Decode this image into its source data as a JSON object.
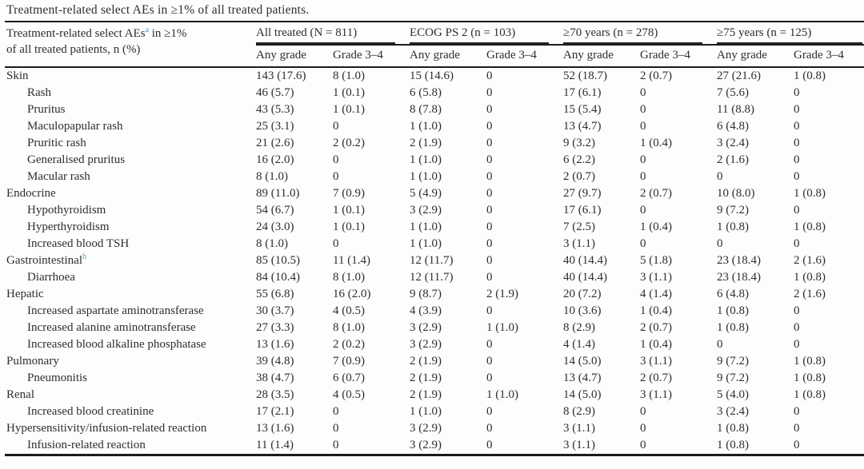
{
  "caption": "Treatment-related select AEs in ≥1% of all treated patients.",
  "colors": {
    "text": "#2e2e2e",
    "rule": "#1c1c1c",
    "footnote_marker": "#4a9ac8",
    "background": "#fdfdfd"
  },
  "table": {
    "row_header": {
      "line1_prefix": "Treatment-related select AEs",
      "sup": "a",
      "line1_suffix": " in ≥1%",
      "line2": "of all treated patients, n (%)"
    },
    "groups": [
      {
        "label": "All treated (N = 811)"
      },
      {
        "label": "ECOG PS 2 (n = 103)"
      },
      {
        "label": "≥70 years (n = 278)"
      },
      {
        "label": "≥75 years (n = 125)"
      }
    ],
    "subheaders": [
      "Any grade",
      "Grade 3–4",
      "Any grade",
      "Grade 3–4",
      "Any grade",
      "Grade 3–4",
      "Any grade",
      "Grade 3–4"
    ],
    "rows": [
      {
        "label": "Skin",
        "indent": false,
        "cells": [
          "143 (17.6)",
          "8 (1.0)",
          "15 (14.6)",
          "0",
          "52 (18.7)",
          "2 (0.7)",
          "27 (21.6)",
          "1 (0.8)"
        ]
      },
      {
        "label": "Rash",
        "indent": true,
        "cells": [
          "46 (5.7)",
          "1 (0.1)",
          "6 (5.8)",
          "0",
          "17 (6.1)",
          "0",
          "7 (5.6)",
          "0"
        ]
      },
      {
        "label": "Pruritus",
        "indent": true,
        "cells": [
          "43 (5.3)",
          "1 (0.1)",
          "8 (7.8)",
          "0",
          "15 (5.4)",
          "0",
          "11 (8.8)",
          "0"
        ]
      },
      {
        "label": "Maculopapular rash",
        "indent": true,
        "cells": [
          "25 (3.1)",
          "0",
          "1 (1.0)",
          "0",
          "13 (4.7)",
          "0",
          "6 (4.8)",
          "0"
        ]
      },
      {
        "label": "Pruritic rash",
        "indent": true,
        "cells": [
          "21 (2.6)",
          "2 (0.2)",
          "2 (1.9)",
          "0",
          "9 (3.2)",
          "1 (0.4)",
          "3 (2.4)",
          "0"
        ]
      },
      {
        "label": "Generalised pruritus",
        "indent": true,
        "cells": [
          "16 (2.0)",
          "0",
          "1 (1.0)",
          "0",
          "6 (2.2)",
          "0",
          "2 (1.6)",
          "0"
        ]
      },
      {
        "label": "Macular rash",
        "indent": true,
        "cells": [
          "8 (1.0)",
          "0",
          "1 (1.0)",
          "0",
          "2 (0.7)",
          "0",
          "0",
          "0"
        ]
      },
      {
        "label": "Endocrine",
        "indent": false,
        "cells": [
          "89 (11.0)",
          "7 (0.9)",
          "5 (4.9)",
          "0",
          "27 (9.7)",
          "2 (0.7)",
          "10 (8.0)",
          "1 (0.8)"
        ]
      },
      {
        "label": "Hypothyroidism",
        "indent": true,
        "cells": [
          "54 (6.7)",
          "1 (0.1)",
          "3 (2.9)",
          "0",
          "17 (6.1)",
          "0",
          "9 (7.2)",
          "0"
        ]
      },
      {
        "label": "Hyperthyroidism",
        "indent": true,
        "cells": [
          "24 (3.0)",
          "1 (0.1)",
          "1 (1.0)",
          "0",
          "7 (2.5)",
          "1 (0.4)",
          "1 (0.8)",
          "1 (0.8)"
        ]
      },
      {
        "label": "Increased blood TSH",
        "indent": true,
        "cells": [
          "8 (1.0)",
          "0",
          "1 (1.0)",
          "0",
          "3 (1.1)",
          "0",
          "0",
          "0"
        ]
      },
      {
        "label": "Gastrointestinal",
        "sup": "b",
        "indent": false,
        "cells": [
          "85 (10.5)",
          "11 (1.4)",
          "12 (11.7)",
          "0",
          "40 (14.4)",
          "5 (1.8)",
          "23 (18.4)",
          "2 (1.6)"
        ]
      },
      {
        "label": "Diarrhoea",
        "indent": true,
        "cells": [
          "84 (10.4)",
          "8 (1.0)",
          "12 (11.7)",
          "0",
          "40 (14.4)",
          "3 (1.1)",
          "23 (18.4)",
          "1 (0.8)"
        ]
      },
      {
        "label": "Hepatic",
        "indent": false,
        "cells": [
          "55 (6.8)",
          "16 (2.0)",
          "9 (8.7)",
          "2 (1.9)",
          "20 (7.2)",
          "4 (1.4)",
          "6 (4.8)",
          "2 (1.6)"
        ]
      },
      {
        "label": "Increased aspartate aminotransferase",
        "indent": true,
        "cells": [
          "30 (3.7)",
          "4 (0.5)",
          "4 (3.9)",
          "0",
          "10 (3.6)",
          "1 (0.4)",
          "1 (0.8)",
          "0"
        ]
      },
      {
        "label": "Increased alanine aminotransferase",
        "indent": true,
        "cells": [
          "27 (3.3)",
          "8 (1.0)",
          "3 (2.9)",
          "1 (1.0)",
          "8 (2.9)",
          "2 (0.7)",
          "1 (0.8)",
          "0"
        ]
      },
      {
        "label": "Increased blood alkaline phosphatase",
        "indent": true,
        "cells": [
          "13 (1.6)",
          "2 (0.2)",
          "3 (2.9)",
          "0",
          "4 (1.4)",
          "1 (0.4)",
          "0",
          "0"
        ]
      },
      {
        "label": "Pulmonary",
        "indent": false,
        "cells": [
          "39 (4.8)",
          "7 (0.9)",
          "2 (1.9)",
          "0",
          "14 (5.0)",
          "3 (1.1)",
          "9 (7.2)",
          "1 (0.8)"
        ]
      },
      {
        "label": "Pneumonitis",
        "indent": true,
        "cells": [
          "38 (4.7)",
          "6 (0.7)",
          "2 (1.9)",
          "0",
          "13 (4.7)",
          "2 (0.7)",
          "9 (7.2)",
          "1 (0.8)"
        ]
      },
      {
        "label": "Renal",
        "indent": false,
        "cells": [
          "28 (3.5)",
          "4 (0.5)",
          "2 (1.9)",
          "1 (1.0)",
          "14 (5.0)",
          "3 (1.1)",
          "5 (4.0)",
          "1 (0.8)"
        ]
      },
      {
        "label": "Increased blood creatinine",
        "indent": true,
        "cells": [
          "17 (2.1)",
          "0",
          "1 (1.0)",
          "0",
          "8 (2.9)",
          "0",
          "3 (2.4)",
          "0"
        ]
      },
      {
        "label": "Hypersensitivity/infusion-related reaction",
        "indent": false,
        "cells": [
          "13 (1.6)",
          "0",
          "3 (2.9)",
          "0",
          "3 (1.1)",
          "0",
          "1 (0.8)",
          "0"
        ]
      },
      {
        "label": "Infusion-related reaction",
        "indent": true,
        "cells": [
          "11 (1.4)",
          "0",
          "3 (2.9)",
          "0",
          "3 (1.1)",
          "0",
          "1 (0.8)",
          "0"
        ]
      }
    ]
  }
}
